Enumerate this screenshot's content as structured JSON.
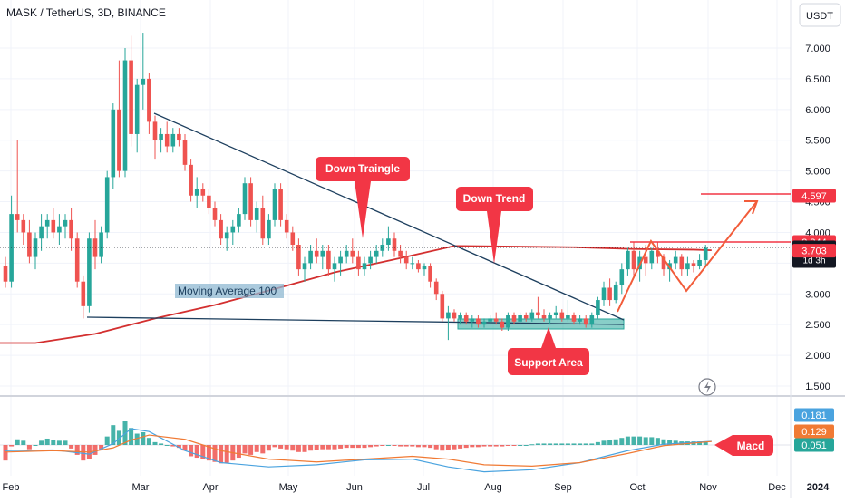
{
  "header": {
    "title": "MASK / TetherUS, 3D, BINANCE",
    "currency_button": "USDT"
  },
  "annotations": {
    "down_triangle": "Down Traingle",
    "down_trend": "Down Trend",
    "support_area": "Support Area",
    "moving_average": "Moving Average 100",
    "macd": "Macd"
  },
  "price_labels": [
    {
      "text": "4.597",
      "value": 4.597,
      "bg": "#f23645",
      "fg": "#ffffff"
    },
    {
      "text": "3.844",
      "value": 3.844,
      "bg": "#f23645",
      "fg": "#ffffff"
    },
    {
      "text": "3.749",
      "value": 3.749,
      "bg": "#131722",
      "fg": "#ffffff",
      "sub": "1d 3h"
    },
    {
      "text": "3.703",
      "value": 3.703,
      "bg": "#f23645",
      "fg": "#ffffff"
    }
  ],
  "macd_labels": [
    {
      "text": "0.181",
      "value": 0.181,
      "bg": "#4aa3df",
      "fg": "#ffffff"
    },
    {
      "text": "0.129",
      "value": 0.129,
      "bg": "#f07a34",
      "fg": "#ffffff"
    },
    {
      "text": "0.051",
      "value": 0.051,
      "bg": "#26a69a",
      "fg": "#ffffff"
    }
  ],
  "colors": {
    "up": "#26a69a",
    "down": "#ef5350",
    "ma": "#d32f2f",
    "trend_line": "#1d3f5e",
    "support": "#26a69a",
    "annotation": "#f23645",
    "projection": "#f25c3a",
    "macd_line": "#4aa3df",
    "signal_line": "#f07a34",
    "grid": "#f0f3fa"
  },
  "chart_data": {
    "type": "candlestick",
    "y_ticks": [
      "7.000",
      "6.500",
      "6.000",
      "5.500",
      "5.000",
      "4.500",
      "4.000",
      "3.500",
      "3.000",
      "2.500",
      "2.000",
      "1.500"
    ],
    "ylim": [
      1.3,
      7.75
    ],
    "x_ticks": [
      "Feb",
      "Mar",
      "Apr",
      "May",
      "Jun",
      "Jul",
      "Aug",
      "Sep",
      "Oct",
      "Nov",
      "Dec",
      "2024"
    ],
    "candles": [
      [
        3.45,
        3.6,
        3.1,
        3.2
      ],
      [
        3.2,
        4.6,
        3.1,
        4.3
      ],
      [
        4.3,
        5.5,
        4.0,
        4.2
      ],
      [
        4.2,
        4.3,
        3.8,
        4.0
      ],
      [
        4.0,
        4.2,
        3.5,
        3.6
      ],
      [
        3.6,
        4.0,
        3.4,
        3.9
      ],
      [
        3.9,
        4.3,
        3.7,
        4.1
      ],
      [
        4.1,
        4.3,
        3.9,
        4.2
      ],
      [
        4.2,
        4.4,
        3.9,
        4.0
      ],
      [
        4.0,
        4.3,
        3.8,
        4.1
      ],
      [
        4.1,
        4.3,
        3.9,
        4.2
      ],
      [
        4.2,
        4.4,
        3.7,
        3.9
      ],
      [
        3.9,
        4.0,
        3.1,
        3.2
      ],
      [
        3.2,
        3.3,
        2.6,
        2.8
      ],
      [
        2.8,
        4.0,
        2.7,
        3.9
      ],
      [
        3.9,
        4.2,
        3.4,
        3.6
      ],
      [
        3.6,
        4.1,
        3.5,
        4.0
      ],
      [
        4.0,
        5.0,
        3.9,
        4.9
      ],
      [
        4.9,
        6.1,
        4.7,
        6.0
      ],
      [
        6.0,
        6.8,
        4.9,
        5.0
      ],
      [
        5.0,
        7.0,
        4.9,
        6.8
      ],
      [
        6.8,
        7.2,
        5.4,
        5.6
      ],
      [
        5.6,
        6.5,
        5.3,
        6.4
      ],
      [
        6.4,
        7.25,
        6.0,
        6.5
      ],
      [
        6.5,
        6.6,
        5.6,
        5.8
      ],
      [
        5.8,
        5.9,
        5.2,
        5.5
      ],
      [
        5.5,
        5.7,
        5.3,
        5.6
      ],
      [
        5.6,
        5.8,
        5.3,
        5.4
      ],
      [
        5.4,
        5.7,
        5.3,
        5.6
      ],
      [
        5.6,
        5.7,
        5.4,
        5.5
      ],
      [
        5.5,
        5.6,
        5.0,
        5.1
      ],
      [
        5.1,
        5.2,
        4.5,
        4.6
      ],
      [
        4.6,
        4.9,
        4.4,
        4.7
      ],
      [
        4.7,
        4.8,
        4.5,
        4.6
      ],
      [
        4.6,
        4.7,
        4.3,
        4.4
      ],
      [
        4.4,
        4.5,
        4.1,
        4.2
      ],
      [
        4.2,
        4.3,
        3.8,
        3.9
      ],
      [
        3.9,
        4.1,
        3.7,
        4.0
      ],
      [
        4.0,
        4.2,
        3.8,
        4.1
      ],
      [
        4.1,
        4.4,
        4.0,
        4.3
      ],
      [
        4.3,
        4.9,
        4.2,
        4.8
      ],
      [
        4.8,
        4.9,
        4.1,
        4.2
      ],
      [
        4.2,
        4.5,
        4.0,
        4.4
      ],
      [
        4.4,
        4.6,
        3.8,
        3.9
      ],
      [
        3.9,
        4.3,
        3.8,
        4.2
      ],
      [
        4.2,
        4.8,
        4.1,
        4.7
      ],
      [
        4.7,
        4.8,
        4.1,
        4.2
      ],
      [
        4.2,
        4.3,
        3.9,
        4.0
      ],
      [
        4.0,
        4.1,
        3.7,
        3.8
      ],
      [
        3.8,
        3.9,
        3.3,
        3.4
      ],
      [
        3.4,
        3.6,
        3.2,
        3.5
      ],
      [
        3.5,
        3.8,
        3.4,
        3.7
      ],
      [
        3.7,
        3.9,
        3.5,
        3.6
      ],
      [
        3.6,
        3.8,
        3.4,
        3.7
      ],
      [
        3.7,
        3.8,
        3.3,
        3.4
      ],
      [
        3.4,
        3.6,
        3.2,
        3.5
      ],
      [
        3.5,
        3.7,
        3.3,
        3.6
      ],
      [
        3.6,
        3.8,
        3.5,
        3.7
      ],
      [
        3.7,
        3.9,
        3.5,
        3.6
      ],
      [
        3.6,
        3.7,
        3.3,
        3.4
      ],
      [
        3.4,
        3.6,
        3.3,
        3.5
      ],
      [
        3.5,
        3.7,
        3.4,
        3.6
      ],
      [
        3.6,
        3.8,
        3.5,
        3.7
      ],
      [
        3.7,
        3.9,
        3.6,
        3.8
      ],
      [
        3.8,
        4.1,
        3.7,
        3.9
      ],
      [
        3.9,
        4.0,
        3.6,
        3.7
      ],
      [
        3.7,
        3.8,
        3.5,
        3.6
      ],
      [
        3.6,
        3.7,
        3.4,
        3.5
      ],
      [
        3.5,
        3.6,
        3.4,
        3.5
      ],
      [
        3.5,
        3.55,
        3.35,
        3.4
      ],
      [
        3.4,
        3.5,
        3.3,
        3.45
      ],
      [
        3.45,
        3.5,
        3.1,
        3.2
      ],
      [
        3.2,
        3.25,
        2.9,
        3.0
      ],
      [
        3.0,
        3.05,
        2.55,
        2.6
      ],
      [
        2.6,
        2.8,
        2.25,
        2.7
      ],
      [
        2.7,
        2.75,
        2.55,
        2.6
      ],
      [
        2.6,
        2.7,
        2.5,
        2.65
      ],
      [
        2.65,
        2.7,
        2.5,
        2.55
      ],
      [
        2.55,
        2.65,
        2.45,
        2.6
      ],
      [
        2.6,
        2.65,
        2.45,
        2.5
      ],
      [
        2.5,
        2.6,
        2.45,
        2.55
      ],
      [
        2.55,
        2.65,
        2.5,
        2.6
      ],
      [
        2.6,
        2.7,
        2.5,
        2.55
      ],
      [
        2.55,
        2.6,
        2.4,
        2.45
      ],
      [
        2.45,
        2.7,
        2.4,
        2.65
      ],
      [
        2.65,
        2.7,
        2.5,
        2.55
      ],
      [
        2.55,
        2.7,
        2.5,
        2.65
      ],
      [
        2.65,
        2.7,
        2.55,
        2.6
      ],
      [
        2.6,
        2.75,
        2.55,
        2.7
      ],
      [
        2.7,
        2.95,
        2.6,
        2.65
      ],
      [
        2.65,
        2.75,
        2.55,
        2.6
      ],
      [
        2.6,
        2.7,
        2.5,
        2.65
      ],
      [
        2.65,
        2.8,
        2.6,
        2.7
      ],
      [
        2.7,
        2.75,
        2.55,
        2.6
      ],
      [
        2.6,
        2.9,
        2.55,
        2.65
      ],
      [
        2.65,
        2.7,
        2.5,
        2.55
      ],
      [
        2.55,
        2.65,
        2.5,
        2.6
      ],
      [
        2.6,
        2.65,
        2.45,
        2.5
      ],
      [
        2.5,
        2.7,
        2.45,
        2.65
      ],
      [
        2.65,
        2.95,
        2.6,
        2.9
      ],
      [
        2.9,
        3.2,
        2.8,
        3.1
      ],
      [
        3.1,
        3.25,
        2.8,
        2.9
      ],
      [
        2.9,
        3.2,
        2.85,
        3.15
      ],
      [
        3.15,
        3.5,
        3.0,
        3.4
      ],
      [
        3.4,
        3.75,
        3.3,
        3.7
      ],
      [
        3.7,
        3.85,
        3.3,
        3.4
      ],
      [
        3.4,
        3.7,
        3.2,
        3.6
      ],
      [
        3.6,
        3.8,
        3.3,
        3.5
      ],
      [
        3.5,
        3.75,
        3.4,
        3.7
      ],
      [
        3.7,
        3.85,
        3.5,
        3.6
      ],
      [
        3.6,
        3.65,
        3.3,
        3.4
      ],
      [
        3.4,
        3.55,
        3.2,
        3.5
      ],
      [
        3.5,
        3.7,
        3.4,
        3.6
      ],
      [
        3.6,
        3.65,
        3.3,
        3.4
      ],
      [
        3.4,
        3.6,
        3.3,
        3.5
      ],
      [
        3.5,
        3.55,
        3.35,
        3.45
      ],
      [
        3.45,
        3.65,
        3.4,
        3.55
      ],
      [
        3.55,
        3.8,
        3.45,
        3.75
      ]
    ],
    "ma100": [
      [
        -1.0,
        2.2
      ],
      [
        5,
        2.2
      ],
      [
        15,
        2.35
      ],
      [
        25,
        2.6
      ],
      [
        35,
        2.82
      ],
      [
        45,
        3.08
      ],
      [
        55,
        3.35
      ],
      [
        65,
        3.56
      ],
      [
        75,
        3.78
      ],
      [
        85,
        3.77
      ],
      [
        95,
        3.76
      ],
      [
        105,
        3.73
      ],
      [
        115,
        3.72
      ],
      [
        118,
        3.71
      ]
    ],
    "macd": [
      -0.22,
      -0.02,
      0.08,
      0.06,
      -0.06,
      0.0,
      0.06,
      0.09,
      0.07,
      0.06,
      0.06,
      -0.05,
      -0.14,
      -0.22,
      -0.2,
      -0.14,
      -0.06,
      0.12,
      0.28,
      0.2,
      0.34,
      0.24,
      0.16,
      0.18,
      0.1,
      0.04,
      0.02,
      0.0,
      -0.02,
      -0.04,
      -0.08,
      -0.16,
      -0.18,
      -0.2,
      -0.22,
      -0.24,
      -0.26,
      -0.25,
      -0.22,
      -0.18,
      -0.12,
      -0.14,
      -0.1,
      -0.12,
      -0.08,
      -0.03,
      -0.05,
      -0.06,
      -0.08,
      -0.1,
      -0.1,
      -0.08,
      -0.07,
      -0.06,
      -0.06,
      -0.06,
      -0.05,
      -0.04,
      -0.04,
      -0.04,
      -0.04,
      -0.03,
      -0.02,
      -0.01,
      0.0,
      -0.01,
      -0.02,
      -0.02,
      -0.02,
      -0.03,
      -0.03,
      -0.04,
      -0.06,
      -0.08,
      -0.07,
      -0.06,
      -0.05,
      -0.04,
      -0.03,
      -0.03,
      -0.02,
      -0.02,
      -0.02,
      -0.02,
      -0.01,
      -0.01,
      0.0,
      0.0,
      0.01,
      0.02,
      0.02,
      0.02,
      0.02,
      0.02,
      0.02,
      0.02,
      0.02,
      0.02,
      0.02,
      0.04,
      0.06,
      0.07,
      0.08,
      0.1,
      0.12,
      0.12,
      0.12,
      0.11,
      0.11,
      0.1,
      0.08,
      0.07,
      0.06,
      0.05,
      0.05,
      0.05,
      0.05,
      0.051
    ],
    "macd_line": [
      [
        0,
        0.05
      ],
      [
        8,
        0.06
      ],
      [
        14,
        0.0
      ],
      [
        18,
        0.15
      ],
      [
        21,
        0.36
      ],
      [
        24,
        0.32
      ],
      [
        30,
        0.05
      ],
      [
        36,
        -0.12
      ],
      [
        44,
        -0.18
      ],
      [
        52,
        -0.15
      ],
      [
        60,
        -0.08
      ],
      [
        68,
        -0.07
      ],
      [
        74,
        -0.18
      ],
      [
        80,
        -0.25
      ],
      [
        88,
        -0.22
      ],
      [
        96,
        -0.12
      ],
      [
        104,
        0.05
      ],
      [
        110,
        0.14
      ],
      [
        118,
        0.181
      ]
    ],
    "signal_line": [
      [
        0,
        -0.02
      ],
      [
        8,
        0.0
      ],
      [
        14,
        -0.02
      ],
      [
        18,
        0.04
      ],
      [
        21,
        0.15
      ],
      [
        24,
        0.22
      ],
      [
        30,
        0.16
      ],
      [
        36,
        0.0
      ],
      [
        44,
        -0.12
      ],
      [
        52,
        -0.16
      ],
      [
        60,
        -0.12
      ],
      [
        68,
        -0.08
      ],
      [
        74,
        -0.12
      ],
      [
        80,
        -0.2
      ],
      [
        88,
        -0.22
      ],
      [
        96,
        -0.17
      ],
      [
        104,
        -0.04
      ],
      [
        110,
        0.07
      ],
      [
        118,
        0.129
      ]
    ]
  }
}
